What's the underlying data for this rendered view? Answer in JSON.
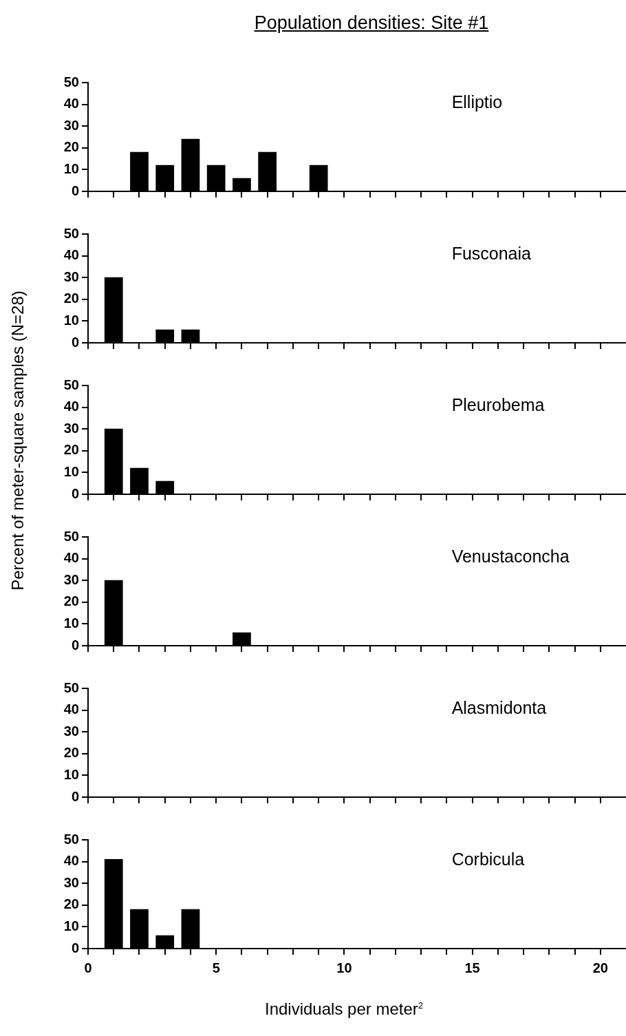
{
  "chart_data": [
    {
      "type": "bar",
      "title": "Population densities: Site #1",
      "annotations": [
        "Elliptio"
      ],
      "x": [
        2,
        3,
        4,
        5,
        6,
        7,
        9
      ],
      "values": [
        18,
        12,
        24,
        12,
        6,
        18,
        12
      ],
      "color": "#000000",
      "xlim": [
        0,
        21
      ],
      "xticks": [
        0,
        {
          "value": 1,
          "label": null
        },
        {
          "value": 2,
          "label": null
        },
        {
          "value": 3,
          "label": null
        },
        {
          "value": 4,
          "label": null
        },
        5,
        {
          "value": 6,
          "label": null
        },
        {
          "value": 7,
          "label": null
        },
        {
          "value": 8,
          "label": null
        },
        {
          "value": 9,
          "label": null
        },
        10,
        {
          "value": 11,
          "label": null
        },
        {
          "value": 12,
          "label": null
        },
        {
          "value": 13,
          "label": null
        },
        {
          "value": 14,
          "label": null
        },
        15,
        {
          "value": 16,
          "label": null
        },
        {
          "value": 17,
          "label": null
        },
        {
          "value": 18,
          "label": null
        },
        {
          "value": 19,
          "label": null
        },
        20
      ],
      "ylim": [
        0,
        50
      ],
      "yticks": [
        0,
        10,
        20,
        30,
        40,
        50
      ],
      "tick_labels": "y"
    },
    {
      "type": "bar",
      "annotations": [
        "Fusconaia"
      ],
      "x": [
        1,
        3,
        4
      ],
      "values": [
        30,
        6,
        6
      ],
      "color": "#000000",
      "xlim": [
        0,
        21
      ],
      "xticks": [
        0,
        {
          "value": 1,
          "label": null
        },
        {
          "value": 2,
          "label": null
        },
        {
          "value": 3,
          "label": null
        },
        {
          "value": 4,
          "label": null
        },
        5,
        {
          "value": 6,
          "label": null
        },
        {
          "value": 7,
          "label": null
        },
        {
          "value": 8,
          "label": null
        },
        {
          "value": 9,
          "label": null
        },
        10,
        {
          "value": 11,
          "label": null
        },
        {
          "value": 12,
          "label": null
        },
        {
          "value": 13,
          "label": null
        },
        {
          "value": 14,
          "label": null
        },
        15,
        {
          "value": 16,
          "label": null
        },
        {
          "value": 17,
          "label": null
        },
        {
          "value": 18,
          "label": null
        },
        {
          "value": 19,
          "label": null
        },
        20
      ],
      "ylim": [
        0,
        50
      ],
      "yticks": [
        0,
        10,
        20,
        30,
        40,
        50
      ],
      "tick_labels": "y"
    },
    {
      "type": "bar",
      "ylabel": "Percent of meter-square samples (N=28)",
      "annotations": [
        "Pleurobema"
      ],
      "x": [
        1,
        2,
        3
      ],
      "values": [
        30,
        12,
        6
      ],
      "color": "#000000",
      "xlim": [
        0,
        21
      ],
      "xticks": [
        0,
        {
          "value": 1,
          "label": null
        },
        {
          "value": 2,
          "label": null
        },
        {
          "value": 3,
          "label": null
        },
        {
          "value": 4,
          "label": null
        },
        5,
        {
          "value": 6,
          "label": null
        },
        {
          "value": 7,
          "label": null
        },
        {
          "value": 8,
          "label": null
        },
        {
          "value": 9,
          "label": null
        },
        10,
        {
          "value": 11,
          "label": null
        },
        {
          "value": 12,
          "label": null
        },
        {
          "value": 13,
          "label": null
        },
        {
          "value": 14,
          "label": null
        },
        15,
        {
          "value": 16,
          "label": null
        },
        {
          "value": 17,
          "label": null
        },
        {
          "value": 18,
          "label": null
        },
        {
          "value": 19,
          "label": null
        },
        20
      ],
      "ylim": [
        0,
        50
      ],
      "yticks": [
        0,
        10,
        20,
        30,
        40,
        50
      ],
      "tick_labels": "y"
    },
    {
      "type": "bar",
      "annotations": [
        "Venustaconcha"
      ],
      "x": [
        1,
        6
      ],
      "values": [
        30,
        6
      ],
      "color": "#000000",
      "xlim": [
        0,
        21
      ],
      "xticks": [
        0,
        {
          "value": 1,
          "label": null
        },
        {
          "value": 2,
          "label": null
        },
        {
          "value": 3,
          "label": null
        },
        {
          "value": 4,
          "label": null
        },
        5,
        {
          "value": 6,
          "label": null
        },
        {
          "value": 7,
          "label": null
        },
        {
          "value": 8,
          "label": null
        },
        {
          "value": 9,
          "label": null
        },
        10,
        {
          "value": 11,
          "label": null
        },
        {
          "value": 12,
          "label": null
        },
        {
          "value": 13,
          "label": null
        },
        {
          "value": 14,
          "label": null
        },
        15,
        {
          "value": 16,
          "label": null
        },
        {
          "value": 17,
          "label": null
        },
        {
          "value": 18,
          "label": null
        },
        {
          "value": 19,
          "label": null
        },
        20
      ],
      "ylim": [
        0,
        50
      ],
      "yticks": [
        0,
        10,
        20,
        30,
        40,
        50
      ],
      "tick_labels": "y"
    },
    {
      "type": "bar",
      "annotations": [
        "Alasmidonta"
      ],
      "color": "#000000",
      "xlim": [
        0,
        21
      ],
      "xticks": [
        0,
        {
          "value": 1,
          "label": null
        },
        {
          "value": 2,
          "label": null
        },
        {
          "value": 3,
          "label": null
        },
        {
          "value": 4,
          "label": null
        },
        5,
        {
          "value": 6,
          "label": null
        },
        {
          "value": 7,
          "label": null
        },
        {
          "value": 8,
          "label": null
        },
        {
          "value": 9,
          "label": null
        },
        10,
        {
          "value": 11,
          "label": null
        },
        {
          "value": 12,
          "label": null
        },
        {
          "value": 13,
          "label": null
        },
        {
          "value": 14,
          "label": null
        },
        15,
        {
          "value": 16,
          "label": null
        },
        {
          "value": 17,
          "label": null
        },
        {
          "value": 18,
          "label": null
        },
        {
          "value": 19,
          "label": null
        },
        20
      ],
      "ylim": [
        0,
        50
      ],
      "yticks": [
        0,
        10,
        20,
        30,
        40,
        50
      ],
      "tick_labels": "y"
    },
    {
      "type": "bar",
      "xlabel": "Individuals per meter$^{2}$",
      "annotations": [
        "Corbicula"
      ],
      "x": [
        1,
        2,
        3,
        4
      ],
      "values": [
        41,
        18,
        6,
        18
      ],
      "color": "#000000",
      "xlim": [
        0,
        21
      ],
      "xticks": [
        0,
        {
          "value": 1,
          "label": null
        },
        {
          "value": 2,
          "label": null
        },
        {
          "value": 3,
          "label": null
        },
        {
          "value": 4,
          "label": null
        },
        5,
        {
          "value": 6,
          "label": null
        },
        {
          "value": 7,
          "label": null
        },
        {
          "value": 8,
          "label": null
        },
        {
          "value": 9,
          "label": null
        },
        10,
        {
          "value": 11,
          "label": null
        },
        {
          "value": 12,
          "label": null
        },
        {
          "value": 13,
          "label": null
        },
        {
          "value": 14,
          "label": null
        },
        15,
        {
          "value": 16,
          "label": null
        },
        {
          "value": 17,
          "label": null
        },
        {
          "value": 18,
          "label": null
        },
        {
          "value": 19,
          "label": null
        },
        20
      ],
      "ylim": [
        0,
        50
      ],
      "yticks": [
        0,
        10,
        20,
        30,
        40,
        50
      ]
    }
  ]
}
